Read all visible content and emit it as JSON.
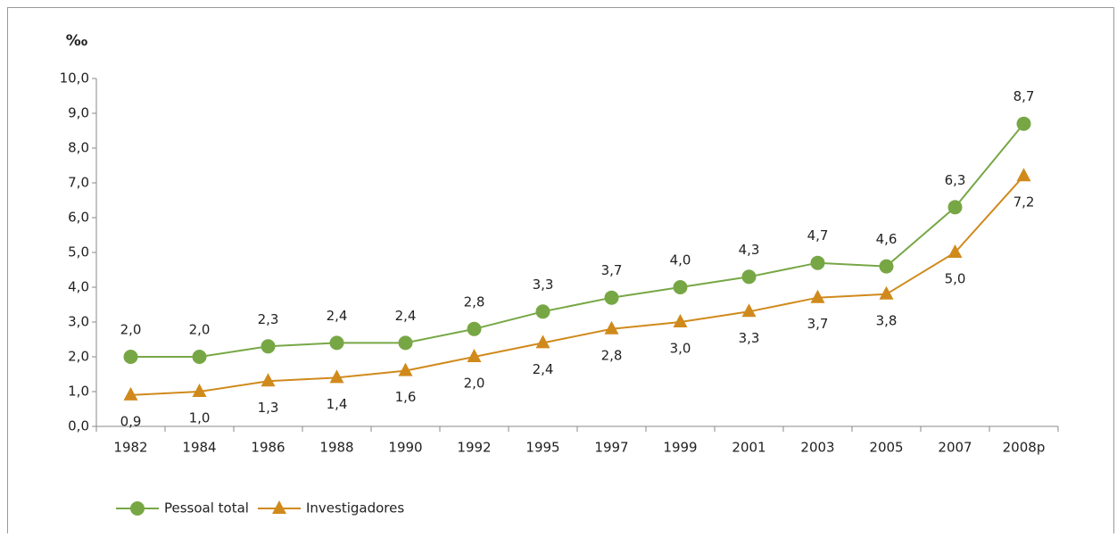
{
  "chart_data": {
    "type": "line",
    "y_label": "‰",
    "categories": [
      "1982",
      "1984",
      "1986",
      "1988",
      "1990",
      "1992",
      "1995",
      "1997",
      "1999",
      "2001",
      "2003",
      "2005",
      "2007",
      "2008p"
    ],
    "series": [
      {
        "name": "Pessoal total",
        "color": "#77a745",
        "marker": "circle",
        "values": [
          2.0,
          2.0,
          2.3,
          2.4,
          2.4,
          2.8,
          3.3,
          3.7,
          4.0,
          4.3,
          4.7,
          4.6,
          6.3,
          8.7
        ],
        "value_labels": [
          "2,0",
          "2,0",
          "2,3",
          "2,4",
          "2,4",
          "2,8",
          "3,3",
          "3,7",
          "4,0",
          "4,3",
          "4,7",
          "4,6",
          "6,3",
          "8,7"
        ]
      },
      {
        "name": "Investigadores",
        "color": "#d08a1c",
        "marker": "triangle",
        "values": [
          0.9,
          1.0,
          1.3,
          1.4,
          1.6,
          2.0,
          2.4,
          2.8,
          3.0,
          3.3,
          3.7,
          3.8,
          5.0,
          7.2
        ],
        "value_labels": [
          "0,9",
          "1,0",
          "1,3",
          "1,4",
          "1,6",
          "2,0",
          "2,4",
          "2,8",
          "3,0",
          "3,3",
          "3,7",
          "3,8",
          "5,0",
          "7,2"
        ]
      }
    ],
    "ylim": [
      0,
      10
    ],
    "yticks": [
      {
        "value": 0,
        "label": "0,0"
      },
      {
        "value": 1,
        "label": "1,0"
      },
      {
        "value": 2,
        "label": "2,0"
      },
      {
        "value": 3,
        "label": "3,0"
      },
      {
        "value": 4,
        "label": "4,0"
      },
      {
        "value": 5,
        "label": "5,0"
      },
      {
        "value": 6,
        "label": "6,0"
      },
      {
        "value": 7,
        "label": "7,0"
      },
      {
        "value": 8,
        "label": "8,0"
      },
      {
        "value": 9,
        "label": "9,0"
      },
      {
        "value": 10,
        "label": "10,0"
      }
    ],
    "grid": false,
    "legend": "bottom-left"
  }
}
